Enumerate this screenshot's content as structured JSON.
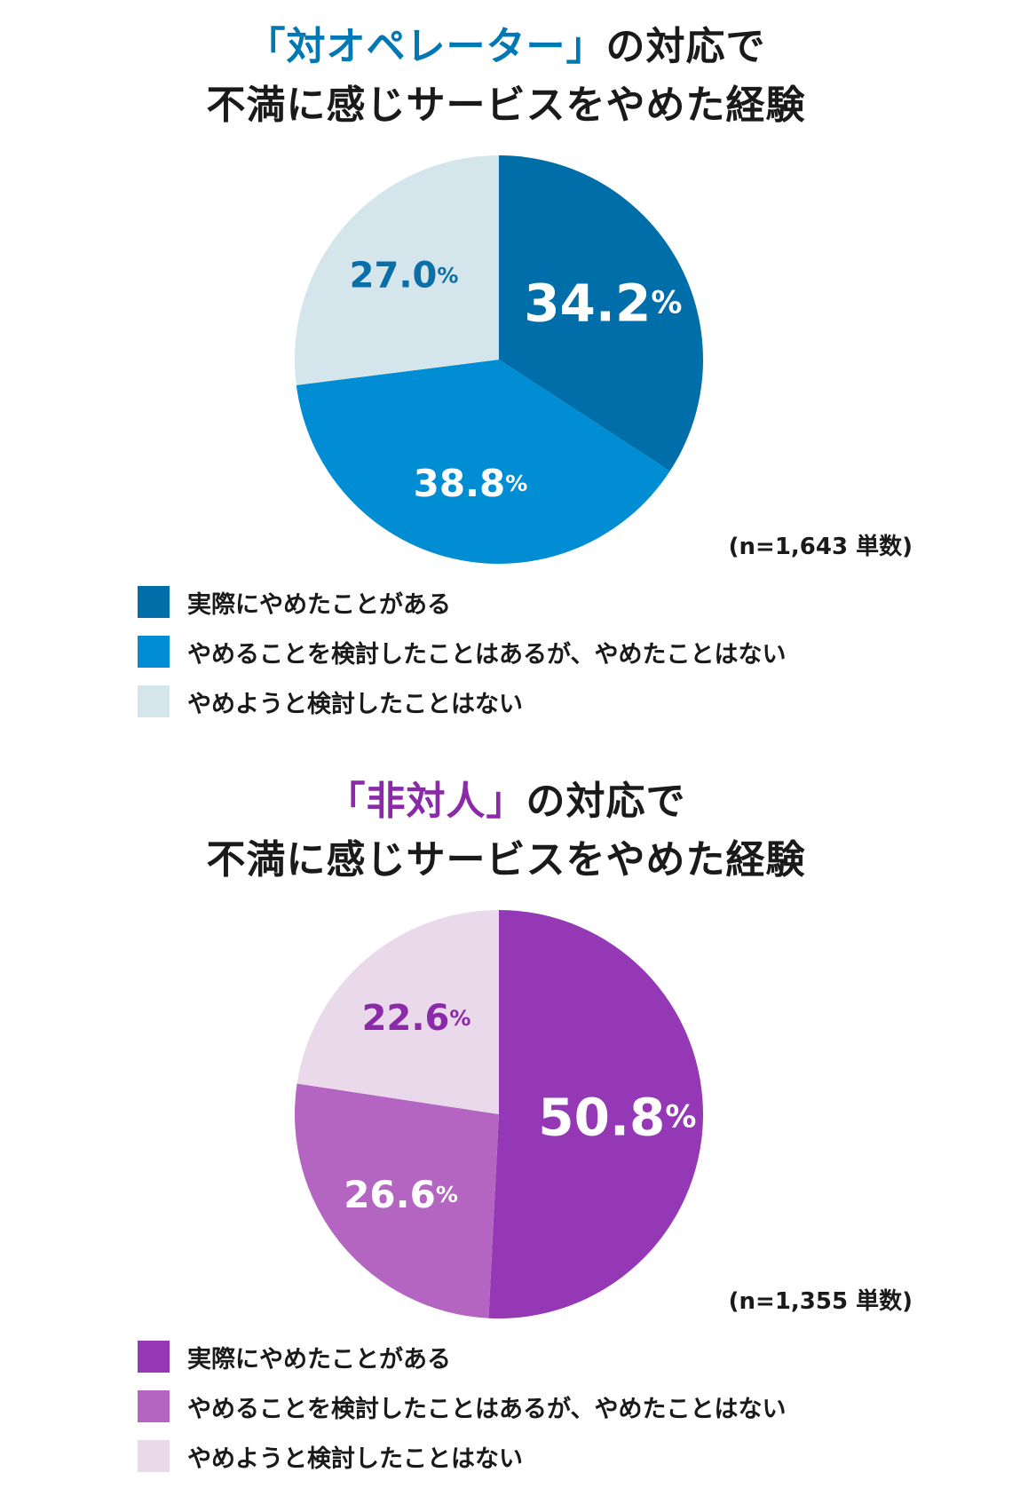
{
  "chart_data": [
    {
      "type": "pie",
      "title_quote": "「対オペレーター」",
      "title_rest": "の対応で",
      "title_line2": "不満に感じサービスをやめた経験",
      "title_accent": "#0078b4",
      "note": "(n=1,643 単数)",
      "slices": [
        {
          "label": "実際にやめたことがある",
          "value": 34.2,
          "display": "34.2",
          "unit": "%",
          "color": "#006ea8",
          "text_color": "#ffffff"
        },
        {
          "label": "やめることを検討したことはあるが、やめたことはない",
          "value": 38.8,
          "display": "38.8",
          "unit": "%",
          "color": "#008dd4",
          "text_color": "#ffffff"
        },
        {
          "label": "やめようと検討したことはない",
          "value": 27.0,
          "display": "27.0",
          "unit": "%",
          "color": "#d4e5ec",
          "text_color": "#0a6ea8"
        }
      ]
    },
    {
      "type": "pie",
      "title_quote": "「非対人」",
      "title_rest": "の対応で",
      "title_line2": "不満に感じサービスをやめた経験",
      "title_accent": "#8a2aa8",
      "note": "(n=1,355 単数)",
      "slices": [
        {
          "label": "実際にやめたことがある",
          "value": 50.8,
          "display": "50.8",
          "unit": "%",
          "color": "#9438b6",
          "text_color": "#ffffff"
        },
        {
          "label": "やめることを検討したことはあるが、やめたことはない",
          "value": 26.6,
          "display": "26.6",
          "unit": "%",
          "color": "#b465c2",
          "text_color": "#ffffff"
        },
        {
          "label": "やめようと検討したことはない",
          "value": 22.6,
          "display": "22.6",
          "unit": "%",
          "color": "#ead9eb",
          "text_color": "#8a2aa8"
        }
      ]
    }
  ]
}
